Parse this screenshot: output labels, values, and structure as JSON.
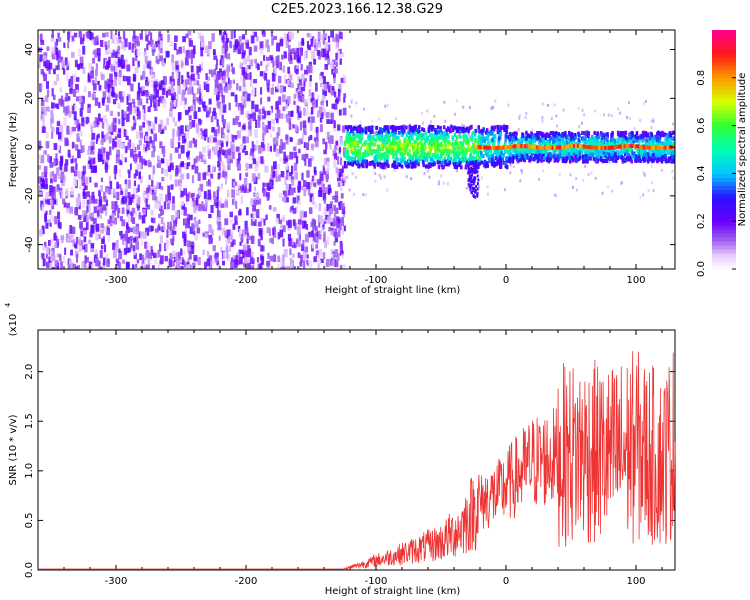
{
  "title": "C2E5.2023.166.12.38.G29",
  "colors": {
    "snr_line": "#ee3333",
    "axis": "#000000"
  },
  "chart_data": [
    {
      "type": "heatmap",
      "xlabel": "Height of straight line (km)",
      "ylabel": "Frequency (Hz)",
      "xlim": [
        -360,
        130
      ],
      "ylim": [
        -50,
        48
      ],
      "xticks": [
        -300,
        -200,
        -100,
        0,
        100
      ],
      "yticks": [
        -40,
        -20,
        0,
        20,
        40
      ],
      "colorbar": {
        "label": "Normalized spectral amplitude",
        "range": [
          0,
          1
        ],
        "ticks": [
          "0.0",
          "0.2",
          "0.4",
          "0.6",
          "0.8"
        ],
        "tick_values": [
          0.0,
          0.2,
          0.4,
          0.6,
          0.8
        ]
      },
      "regions": [
        {
          "name": "noise",
          "x_range": [
            -360,
            -125
          ],
          "freq_range": [
            -50,
            48
          ],
          "amplitude": 0.1
        },
        {
          "name": "signal-band",
          "x_range": [
            -125,
            130
          ],
          "center_freq": 0,
          "half_width": 6,
          "amplitude": 0.3
        },
        {
          "name": "carrier",
          "x_range": [
            -25,
            130
          ],
          "center_freq": 0,
          "half_width": 1,
          "amplitude": 0.95
        }
      ]
    },
    {
      "type": "line",
      "xlabel": "Height of straight line (km)",
      "ylabel": "SNR (10 * v/v)",
      "scale_label": "(x10",
      "scale_exp": "4",
      "xlim": [
        -360,
        130
      ],
      "ylim": [
        0,
        2.42
      ],
      "xticks": [
        -300,
        -200,
        -100,
        0,
        100
      ],
      "yticks": [
        "0.0",
        "0.5",
        "1.0",
        "1.5",
        "2.0"
      ],
      "ytick_values": [
        0.0,
        0.5,
        1.0,
        1.5,
        2.0
      ],
      "series": [
        {
          "name": "SNR",
          "x": [
            -360,
            -300,
            -200,
            -125,
            -110,
            -90,
            -70,
            -50,
            -35,
            -25,
            -15,
            -5,
            0,
            20,
            40,
            60,
            80,
            100,
            120,
            130
          ],
          "values": [
            0.01,
            0.01,
            0.01,
            0.01,
            0.06,
            0.13,
            0.2,
            0.28,
            0.42,
            0.6,
            0.72,
            0.78,
            0.85,
            1.08,
            1.15,
            1.2,
            1.15,
            1.25,
            1.1,
            1.3
          ]
        }
      ]
    }
  ]
}
